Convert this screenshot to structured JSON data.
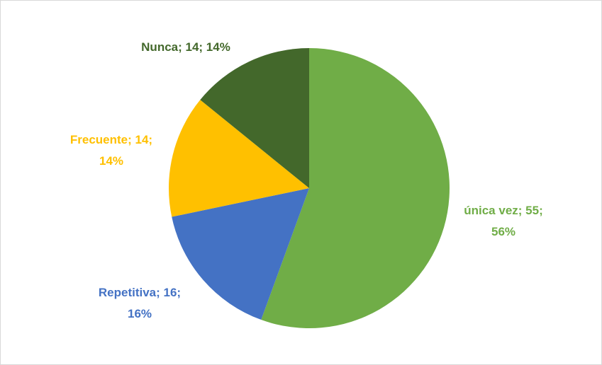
{
  "chart_data": {
    "type": "pie",
    "categories": [
      "única vez",
      "Repetitiva",
      "Frecuente",
      "Nunca"
    ],
    "values": [
      55,
      16,
      14,
      14
    ],
    "value_labels": [
      "; 55; 56%",
      "; 16; 16%",
      "; 14; 14%",
      "; 14; 14%"
    ],
    "colors": [
      "#70ad47",
      "#4472c4",
      "#ffc000",
      "#43682b"
    ]
  }
}
